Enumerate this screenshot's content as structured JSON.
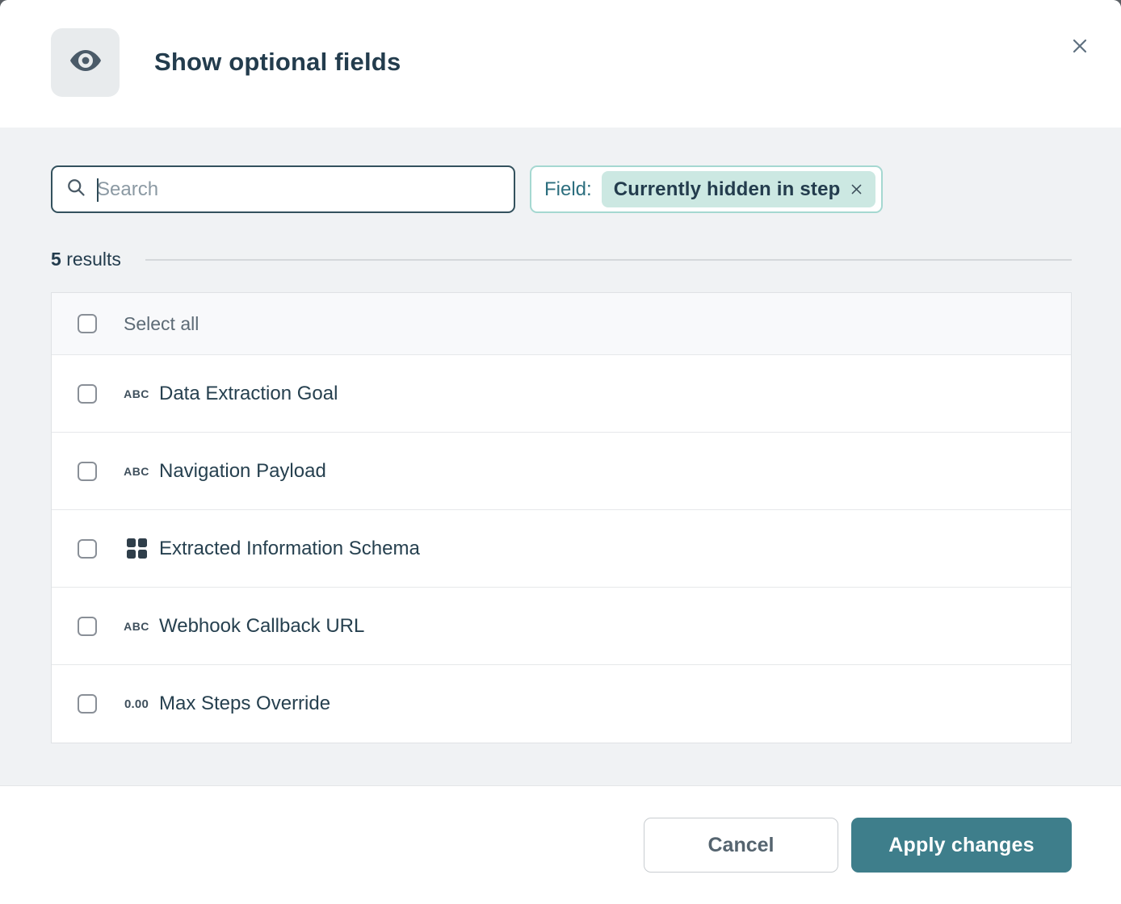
{
  "header": {
    "title": "Show optional fields"
  },
  "search": {
    "placeholder": "Search",
    "value": ""
  },
  "filter": {
    "label": "Field:",
    "chip_label": "Currently hidden in step"
  },
  "results": {
    "count": "5",
    "label": "results"
  },
  "list": {
    "select_all_label": "Select all",
    "items": [
      {
        "icon": "text",
        "icon_text": "ABC",
        "label": "Data Extraction Goal"
      },
      {
        "icon": "text",
        "icon_text": "ABC",
        "label": "Navigation Payload"
      },
      {
        "icon": "grid",
        "icon_text": "",
        "label": "Extracted Information Schema"
      },
      {
        "icon": "text",
        "icon_text": "ABC",
        "label": "Webhook Callback URL"
      },
      {
        "icon": "number",
        "icon_text": "0.00",
        "label": "Max Steps Override"
      }
    ]
  },
  "footer": {
    "cancel_label": "Cancel",
    "apply_label": "Apply changes"
  },
  "colors": {
    "accent_teal": "#3e7e8b",
    "chip_bg": "#cce8e2",
    "chip_border": "#a5d8d1",
    "field_label_teal": "#2c6e7e",
    "dark_text": "#233c4d",
    "body_bg": "#f0f2f4"
  }
}
